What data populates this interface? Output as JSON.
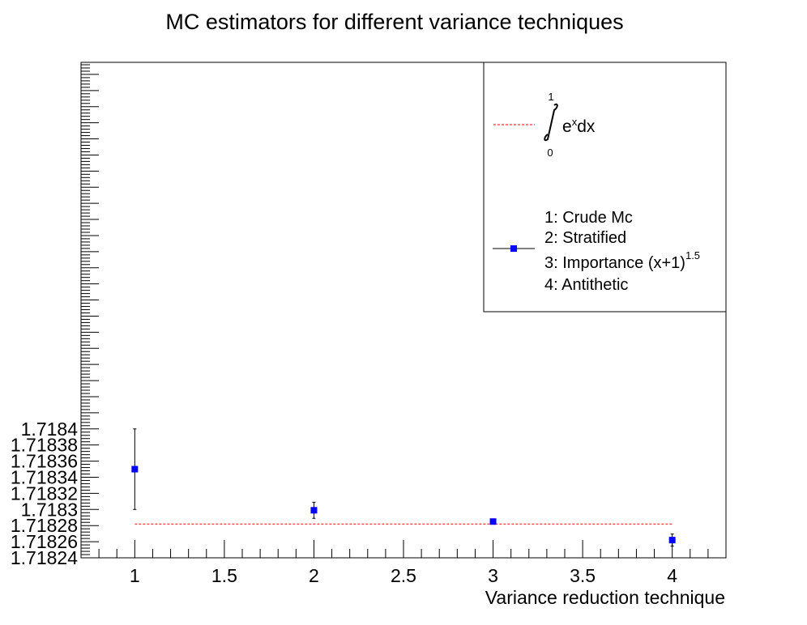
{
  "chart_data": {
    "type": "scatter",
    "title": "MC estimators for different variance techniques",
    "xlabel": "Variance reduction technique",
    "ylabel": "",
    "xlim": [
      0.7,
      4.3
    ],
    "ylim": [
      1.71824,
      1.718855
    ],
    "x_ticks": [
      "1",
      "1.5",
      "2",
      "2.5",
      "3",
      "3.5",
      "4"
    ],
    "y_ticks": [
      "1.71824",
      "1.71826",
      "1.71828",
      "1.7183",
      "1.71832",
      "1.71834",
      "1.71836",
      "1.71838",
      "1.7184"
    ],
    "grid": false,
    "legend_position": "top-right",
    "series": [
      {
        "name": "",
        "x": [
          1,
          2,
          3,
          4
        ],
        "y": [
          1.71835,
          1.718299,
          1.718285,
          1.718262
        ],
        "yerr": [
          5e-05,
          1e-05,
          2.5e-06,
          7.5e-06
        ],
        "color": "#0000ff",
        "marker": "square"
      }
    ],
    "reference_line": {
      "y": 1.718282,
      "x_range": [
        1,
        4
      ],
      "color": "#ff0000",
      "style": "dashed"
    },
    "legend": {
      "integral_upper": "1",
      "integral_lower": "0",
      "integral_base": "e",
      "integral_exp": "x",
      "integral_dx": "dx",
      "lines": [
        "1: Crude Mc",
        "2: Stratified",
        "3: Importance (x+1)",
        "4: Antithetic"
      ],
      "importance_exp": "1.5"
    }
  }
}
